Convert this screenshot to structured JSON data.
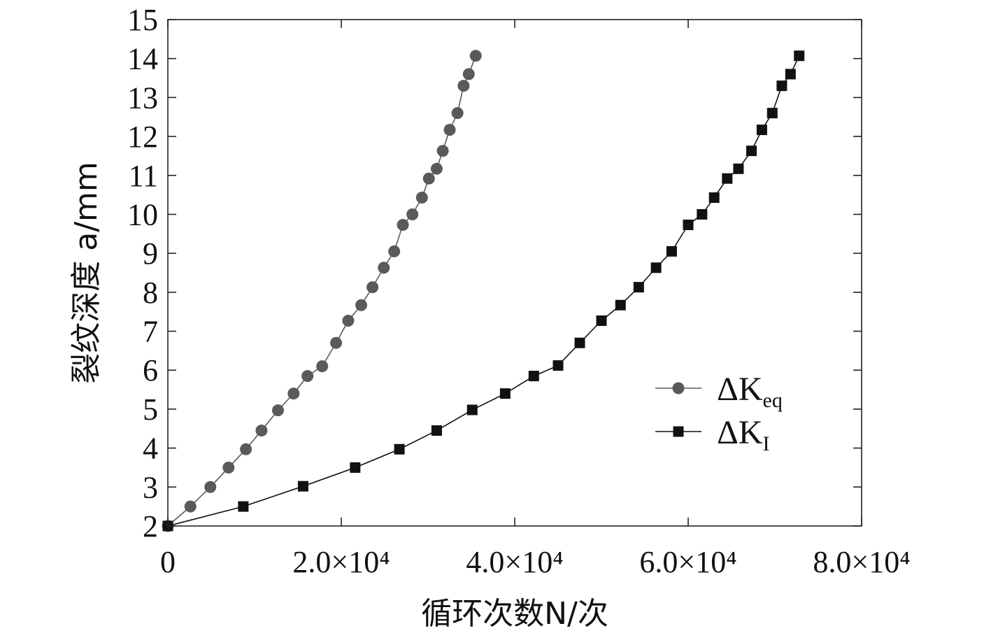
{
  "chart_data": {
    "type": "line",
    "title": "",
    "xlabel": "循环次数N/次",
    "ylabel": "裂纹深度 a/mm",
    "xlim": [
      0,
      80000
    ],
    "ylim": [
      2,
      15
    ],
    "x_ticks": [
      0,
      20000,
      40000,
      60000,
      80000
    ],
    "x_tick_labels": [
      "0",
      "2.0×10⁴",
      "4.0×10⁴",
      "6.0×10⁴",
      "8.0×10⁴"
    ],
    "y_ticks": [
      2,
      3,
      4,
      5,
      6,
      7,
      8,
      9,
      10,
      11,
      12,
      13,
      14,
      15
    ],
    "y_tick_labels": [
      "2",
      "3",
      "4",
      "5",
      "6",
      "7",
      "8",
      "9",
      "10",
      "11",
      "12",
      "13",
      "14",
      "15"
    ],
    "legend_position": "center-right",
    "series": [
      {
        "name": "ΔKeq",
        "label_main": "ΔK",
        "label_sub": "eq",
        "marker": "circle",
        "color": "#5a5a5a",
        "x": [
          0,
          2600,
          4900,
          7000,
          9000,
          10800,
          12700,
          14500,
          16100,
          17800,
          19400,
          20800,
          22300,
          23600,
          24900,
          26100,
          27100,
          28200,
          29300,
          30100,
          31000,
          31700,
          32500,
          33400,
          34100,
          34700,
          35500
        ],
        "y": [
          2.0,
          2.5,
          3.0,
          3.5,
          3.97,
          4.45,
          4.97,
          5.4,
          5.85,
          6.1,
          6.7,
          7.27,
          7.67,
          8.13,
          8.63,
          9.05,
          9.73,
          10.0,
          10.43,
          10.92,
          11.17,
          11.63,
          12.17,
          12.6,
          13.3,
          13.6,
          14.07
        ]
      },
      {
        "name": "ΔKI",
        "label_main": "ΔK",
        "label_sub": "I",
        "marker": "square",
        "color": "#111111",
        "x": [
          0,
          8700,
          15600,
          21600,
          26700,
          31000,
          35100,
          38900,
          42200,
          45000,
          47500,
          50000,
          52200,
          54300,
          56300,
          58100,
          60000,
          61600,
          63000,
          64500,
          65800,
          67300,
          68500,
          69700,
          70800,
          71800,
          72800
        ],
        "y": [
          2.0,
          2.5,
          3.02,
          3.5,
          3.97,
          4.45,
          4.98,
          5.4,
          5.85,
          6.12,
          6.7,
          7.27,
          7.67,
          8.13,
          8.63,
          9.05,
          9.73,
          10.0,
          10.43,
          10.92,
          11.17,
          11.63,
          12.17,
          12.6,
          13.3,
          13.6,
          14.07
        ]
      }
    ]
  }
}
